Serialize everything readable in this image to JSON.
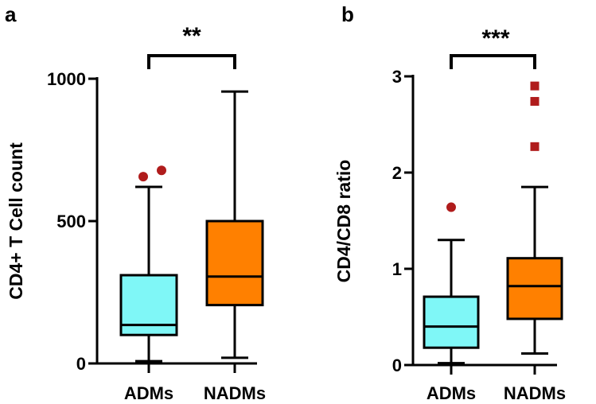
{
  "colors": {
    "ADMs": "#7ff7f7",
    "NADMs": "#ff8000",
    "outlier": "#b01c1c",
    "axis": "#000000"
  },
  "chart_data": [
    {
      "panel": "a",
      "type": "box",
      "title": "",
      "xlabel": "",
      "ylabel": "CD4+ T Cell count",
      "ylim": [
        0,
        1000
      ],
      "yticks": [
        0,
        500,
        1000
      ],
      "categories": [
        "ADMs",
        "NADMs"
      ],
      "boxes": [
        {
          "name": "ADMs",
          "min": 8,
          "q1": 100,
          "median": 135,
          "q3": 310,
          "max": 620,
          "outliers": [
            656,
            678
          ],
          "outlier_marker": "circle"
        },
        {
          "name": "NADMs",
          "min": 20,
          "q1": 205,
          "median": 305,
          "q3": 500,
          "max": 955,
          "outliers": [],
          "outlier_marker": "circle"
        }
      ],
      "significance": "**"
    },
    {
      "panel": "b",
      "type": "box",
      "title": "",
      "xlabel": "",
      "ylabel": "CD4/CD8 ratio",
      "ylim": [
        0,
        3
      ],
      "yticks": [
        0,
        1,
        2,
        3
      ],
      "categories": [
        "ADMs",
        "NADMs"
      ],
      "boxes": [
        {
          "name": "ADMs",
          "min": 0.02,
          "q1": 0.18,
          "median": 0.4,
          "q3": 0.71,
          "max": 1.3,
          "outliers": [
            1.64
          ],
          "outlier_marker": "circle"
        },
        {
          "name": "NADMs",
          "min": 0.12,
          "q1": 0.48,
          "median": 0.82,
          "q3": 1.11,
          "max": 1.85,
          "outliers": [
            2.27,
            2.74,
            2.9
          ],
          "outlier_marker": "square"
        }
      ],
      "significance": "***"
    }
  ]
}
